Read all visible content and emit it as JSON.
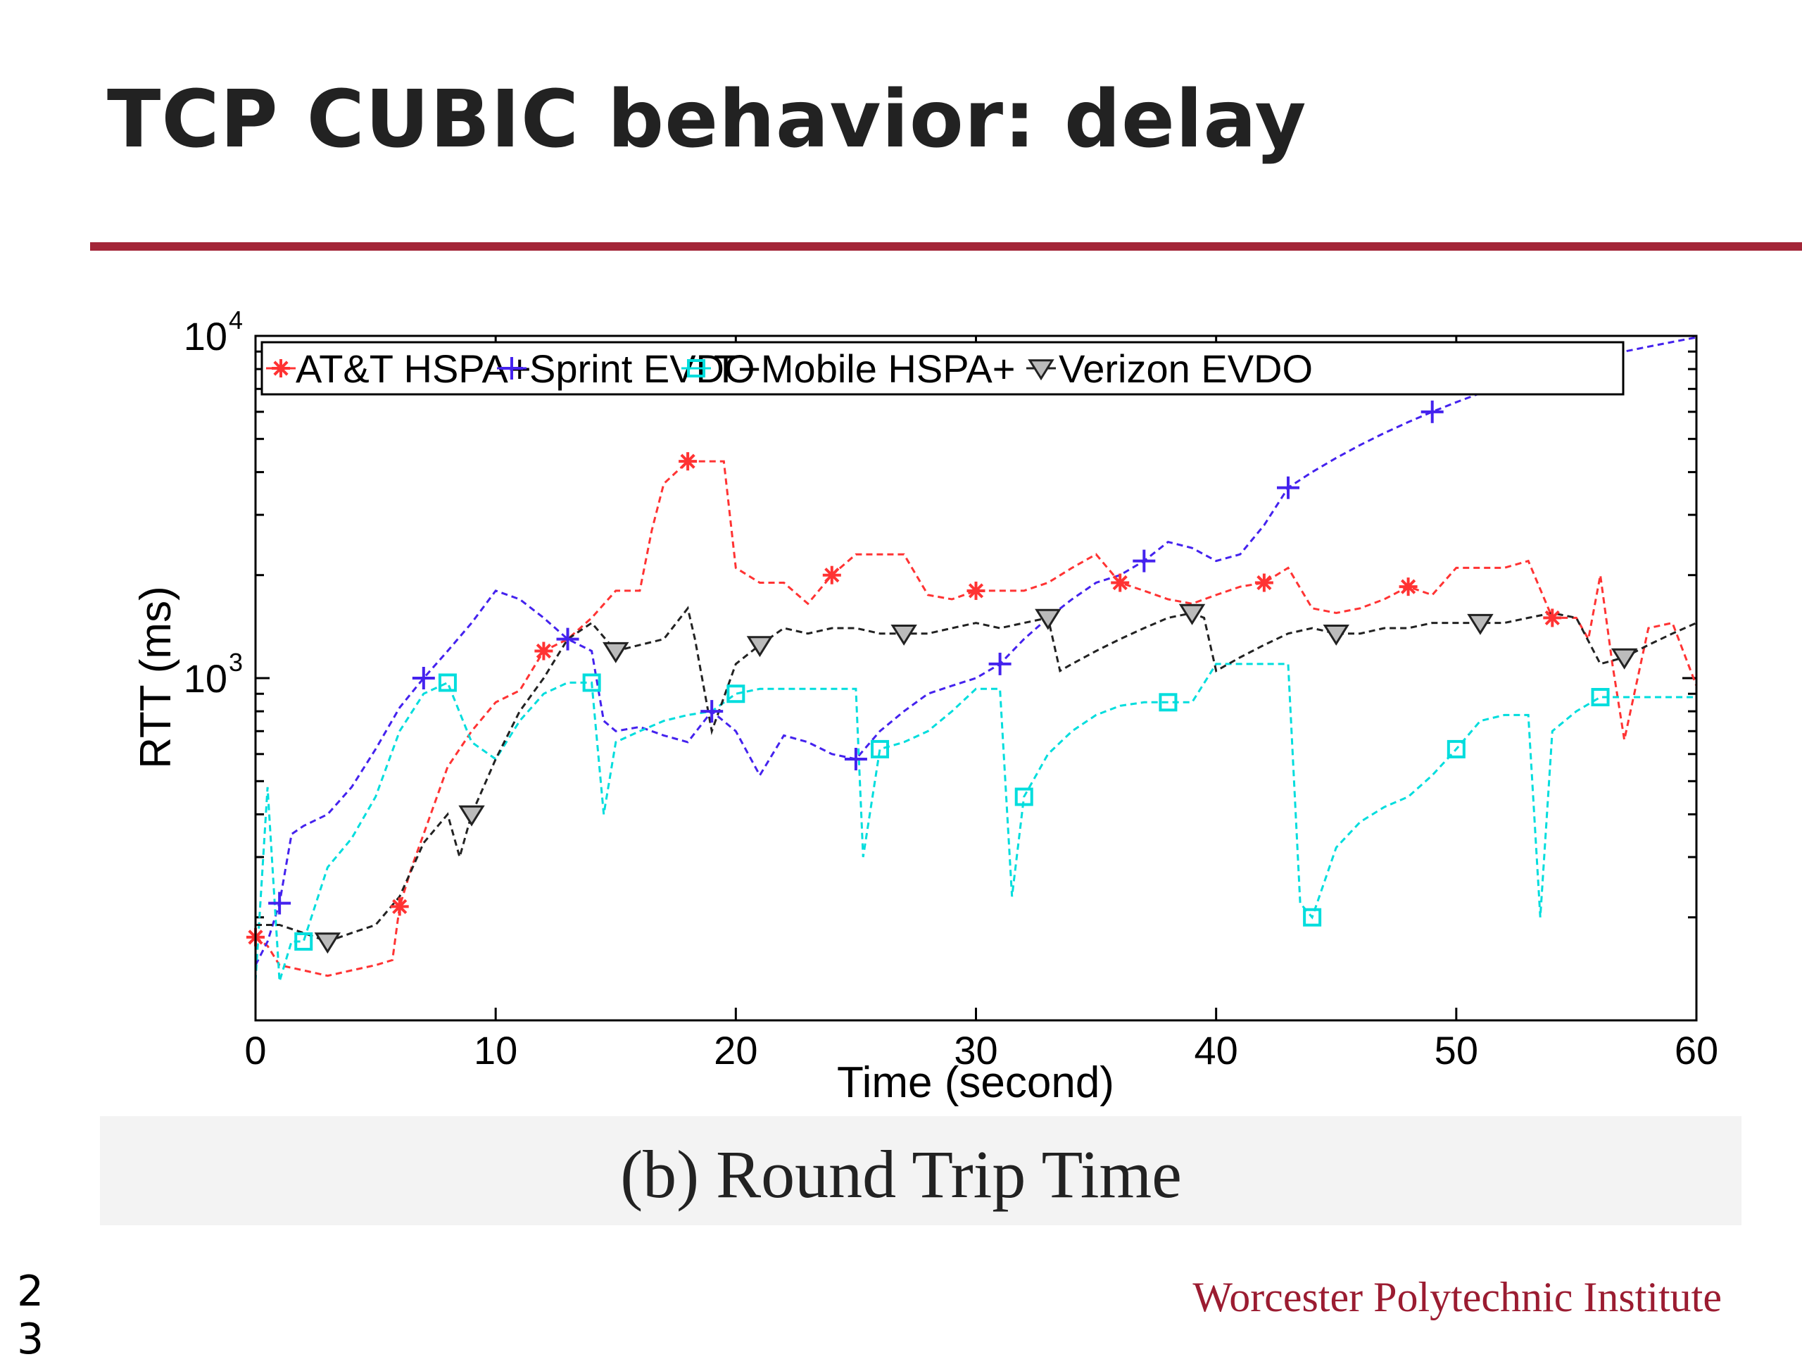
{
  "slide": {
    "title": "TCP CUBIC behavior: delay",
    "caption": "(b) Round Trip Time",
    "institution": "Worcester Polytechnic Institute",
    "page_number": "2\n3",
    "accent_color": "#a32638"
  },
  "chart_data": {
    "type": "line",
    "xlabel": "Time (second)",
    "ylabel": "RTT (ms)",
    "xlim": [
      0,
      60
    ],
    "ylim": [
      100,
      10000
    ],
    "y_scale": "log",
    "x_ticks": [
      0,
      10,
      20,
      30,
      40,
      50,
      60
    ],
    "x_tick_labels": [
      "0",
      "10",
      "20",
      "30",
      "40",
      "50",
      "60"
    ],
    "y_major_ticks": [
      1000,
      10000
    ],
    "y_tick_labels": [
      {
        "base": "10",
        "exp": "3",
        "value": 1000
      },
      {
        "base": "10",
        "exp": "4",
        "value": 10000
      }
    ],
    "grid": false,
    "legend_position": "top",
    "series": [
      {
        "name": "AT&T HSPA+",
        "color": "#ff3333",
        "marker": "asterisk",
        "marker_x": [
          0,
          6,
          12,
          18,
          24,
          30,
          36,
          42,
          48,
          54
        ],
        "x": [
          0,
          0.5,
          1,
          2,
          3,
          4,
          5,
          5.7,
          6,
          6.5,
          7,
          8,
          9,
          10,
          11,
          12,
          13,
          14,
          15,
          16,
          16.5,
          17,
          18,
          19,
          19.5,
          20,
          21,
          22,
          23,
          24,
          25,
          26,
          27,
          28,
          29,
          30,
          31,
          32,
          33,
          34,
          35,
          36,
          37,
          38,
          39,
          40,
          41,
          42,
          43,
          44,
          45,
          46,
          47,
          48,
          49,
          50,
          51,
          52,
          53,
          54,
          55,
          55.5,
          56,
          56.5,
          57,
          58,
          59,
          60
        ],
        "y": [
          175,
          165,
          145,
          140,
          135,
          140,
          145,
          150,
          215,
          280,
          350,
          550,
          700,
          850,
          920,
          1200,
          1300,
          1500,
          1800,
          1800,
          2700,
          3700,
          4300,
          4300,
          4300,
          2100,
          1900,
          1900,
          1650,
          2000,
          2300,
          2300,
          2300,
          1750,
          1700,
          1800,
          1800,
          1800,
          1900,
          2100,
          2300,
          1900,
          1800,
          1700,
          1650,
          1750,
          1850,
          1900,
          2100,
          1600,
          1550,
          1600,
          1700,
          1850,
          1750,
          2100,
          2100,
          2100,
          2200,
          1500,
          1500,
          1300,
          2000,
          1100,
          660,
          1400,
          1450,
          950
        ]
      },
      {
        "name": "Sprint EVDO",
        "color": "#4422ee",
        "marker": "plus",
        "marker_x": [
          1,
          7,
          13,
          19,
          25,
          31,
          37,
          43,
          49
        ],
        "x": [
          0,
          0.5,
          1,
          1.5,
          2,
          3,
          4,
          5,
          6,
          7,
          8,
          9,
          10,
          11,
          12,
          13,
          14,
          14.5,
          15,
          16,
          17,
          18,
          19,
          20,
          21,
          22,
          23,
          24,
          25,
          26,
          27,
          28,
          29,
          30,
          31,
          32,
          33,
          34,
          35,
          36,
          37,
          38,
          39,
          40,
          41,
          42,
          43,
          44,
          45,
          46,
          47,
          48,
          49,
          50,
          51,
          52,
          53,
          54,
          55,
          56,
          57,
          58,
          59,
          60
        ],
        "y": [
          145,
          170,
          220,
          350,
          370,
          400,
          480,
          620,
          820,
          1000,
          1200,
          1450,
          1800,
          1700,
          1500,
          1300,
          1200,
          750,
          700,
          720,
          680,
          650,
          800,
          700,
          520,
          680,
          650,
          600,
          580,
          700,
          800,
          900,
          950,
          1000,
          1100,
          1300,
          1500,
          1700,
          1900,
          2000,
          2200,
          2500,
          2400,
          2200,
          2300,
          2800,
          3600,
          4000,
          4400,
          4800,
          5200,
          5600,
          6000,
          6400,
          6800,
          7200,
          7600,
          8000,
          8400,
          8700,
          9000,
          9300,
          9600,
          9900
        ]
      },
      {
        "name": "T−Mobile HSPA+",
        "color": "#00dddd",
        "marker": "square",
        "marker_x": [
          2,
          8,
          14,
          20,
          26,
          32,
          38,
          44,
          50,
          56
        ],
        "x": [
          0,
          0.5,
          1,
          1.5,
          2,
          3,
          4,
          5,
          6,
          7,
          8,
          9,
          10,
          11,
          12,
          13,
          14,
          14.5,
          15,
          16,
          17,
          18,
          19,
          20,
          21,
          22,
          23,
          24,
          25,
          25.3,
          26,
          27,
          28,
          29,
          30,
          31,
          31.5,
          32,
          33,
          34,
          35,
          36,
          37,
          38,
          39,
          40,
          41,
          42,
          43,
          43.5,
          44,
          45,
          46,
          47,
          48,
          49,
          50,
          51,
          52,
          53,
          53.5,
          54,
          55,
          56,
          57,
          58,
          59,
          60
        ],
        "y": [
          130,
          480,
          130,
          170,
          170,
          280,
          340,
          450,
          700,
          900,
          970,
          650,
          580,
          750,
          900,
          970,
          970,
          400,
          650,
          700,
          750,
          780,
          800,
          900,
          930,
          930,
          930,
          930,
          930,
          300,
          620,
          650,
          700,
          800,
          930,
          930,
          230,
          450,
          600,
          700,
          780,
          830,
          850,
          850,
          850,
          1100,
          1100,
          1100,
          1100,
          220,
          200,
          320,
          380,
          420,
          450,
          520,
          620,
          750,
          780,
          780,
          200,
          700,
          800,
          880,
          880,
          880,
          880,
          880
        ]
      },
      {
        "name": "Verizon EVDO",
        "color": "#222222",
        "marker": "triangle-down",
        "marker_x": [
          3,
          9,
          15,
          21,
          27,
          33,
          39,
          45,
          51,
          57
        ],
        "x": [
          0,
          1,
          2,
          3,
          4,
          5,
          6,
          7,
          8,
          8.5,
          9,
          10,
          11,
          12,
          13,
          14,
          15,
          16,
          17,
          18,
          18.3,
          19,
          20,
          21,
          22,
          23,
          24,
          25,
          26,
          27,
          28,
          29,
          30,
          31,
          32,
          33,
          33.5,
          34,
          35,
          36,
          37,
          38,
          39,
          39.5,
          40,
          41,
          42,
          43,
          44,
          45,
          46,
          47,
          48,
          49,
          50,
          51,
          52,
          53,
          54,
          55,
          56,
          57,
          58,
          59,
          60
        ],
        "y": [
          190,
          190,
          180,
          170,
          180,
          190,
          230,
          330,
          400,
          300,
          400,
          580,
          800,
          1000,
          1300,
          1450,
          1200,
          1250,
          1300,
          1600,
          1300,
          700,
          1100,
          1250,
          1400,
          1350,
          1400,
          1400,
          1350,
          1350,
          1350,
          1400,
          1450,
          1400,
          1450,
          1500,
          1050,
          1100,
          1200,
          1300,
          1400,
          1500,
          1550,
          1500,
          1050,
          1150,
          1250,
          1350,
          1400,
          1350,
          1350,
          1400,
          1400,
          1450,
          1450,
          1450,
          1450,
          1500,
          1550,
          1500,
          1100,
          1150,
          1250,
          1350,
          1450
        ]
      }
    ]
  }
}
